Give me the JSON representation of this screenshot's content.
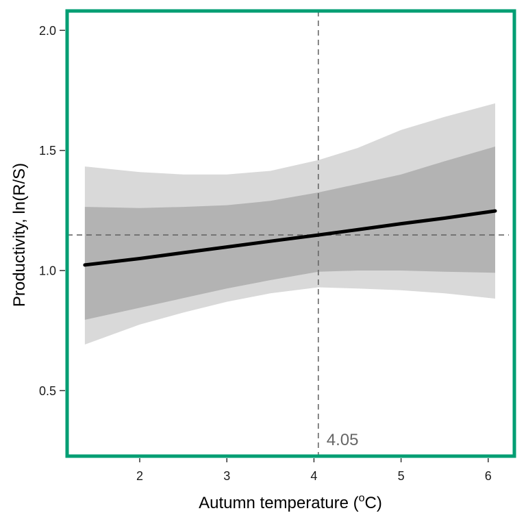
{
  "colors": {
    "frame": "#009e73",
    "outer_band": "#d9d9d9",
    "inner_band": "#b3b3b3",
    "line": "#000000",
    "reference": "#666666"
  },
  "chart_data": {
    "type": "line",
    "title": "",
    "xlabel": "Autumn temperature (",
    "xlabel_sup": "o",
    "xlabel_suffix": "C)",
    "ylabel": "Productivity, ln(R/S)",
    "xlim": [
      1.05,
      6.3
    ],
    "ylim": [
      0.22,
      2.08
    ],
    "x_ticks": [
      2,
      3,
      4,
      5,
      6
    ],
    "x_tick_labels": [
      "2",
      "3",
      "4",
      "5",
      "6"
    ],
    "y_ticks": [
      0.5,
      1.0,
      1.5,
      2.0
    ],
    "y_tick_labels": [
      "0.5",
      "1.0",
      "1.5",
      "2.0"
    ],
    "grid": false,
    "x": [
      1.37,
      2.0,
      2.5,
      3.0,
      3.5,
      4.05,
      4.5,
      5.0,
      5.5,
      6.08
    ],
    "series": [
      {
        "name": "fit",
        "values": [
          1.023,
          1.05,
          1.074,
          1.098,
          1.122,
          1.148,
          1.17,
          1.195,
          1.218,
          1.248
        ]
      }
    ],
    "outer_band": {
      "upper": [
        1.433,
        1.41,
        1.4,
        1.4,
        1.415,
        1.46,
        1.51,
        1.585,
        1.64,
        1.696
      ],
      "lower": [
        0.692,
        0.775,
        0.825,
        0.87,
        0.905,
        0.93,
        0.925,
        0.918,
        0.905,
        0.883
      ]
    },
    "inner_band": {
      "upper": [
        1.265,
        1.26,
        1.265,
        1.272,
        1.29,
        1.325,
        1.36,
        1.4,
        1.455,
        1.516
      ],
      "lower": [
        0.795,
        0.845,
        0.885,
        0.925,
        0.96,
        0.995,
        1.0,
        1.0,
        0.995,
        0.991
      ]
    },
    "reference_lines": {
      "vertical_x": 4.05,
      "horizontal_y": 1.148
    },
    "annotations": [
      "4.05"
    ]
  }
}
